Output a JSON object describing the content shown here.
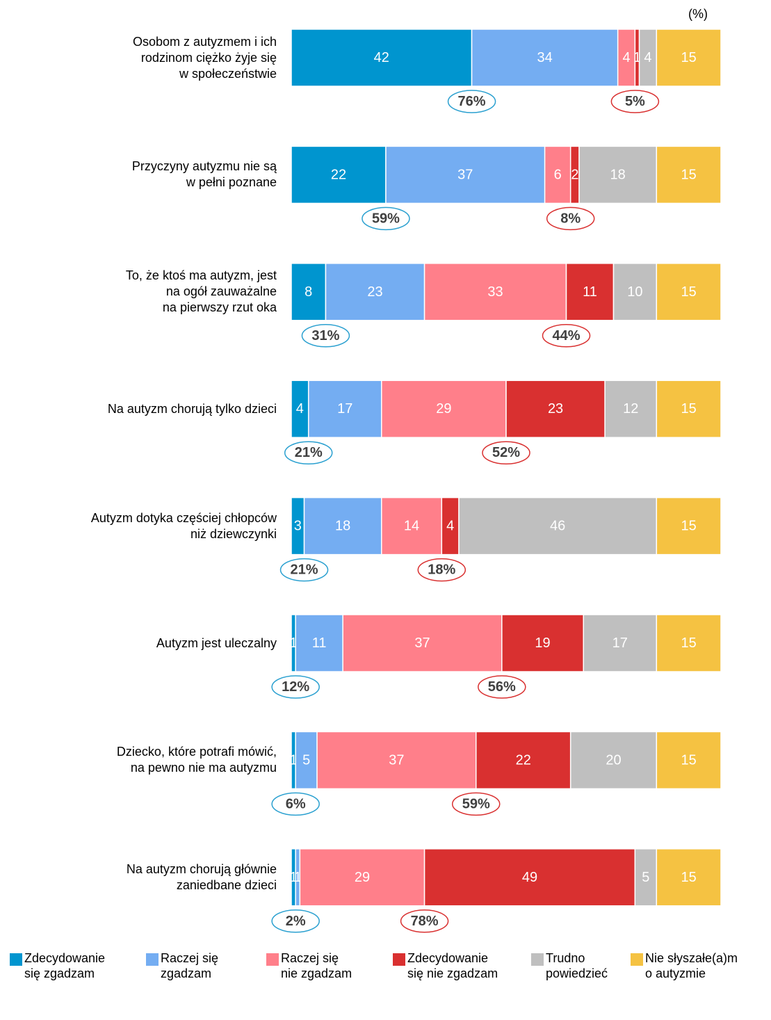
{
  "chart_data": {
    "type": "stacked_bar_horizontal",
    "unit": "(%)",
    "categories": [
      "Osobom z autyzmem i ich\nrodzinom ciężko żyje się\nw społeczeństwie",
      "Przyczyny autyzmu nie są\nw pełni poznane",
      "To, że ktoś ma autyzm, jest\nna ogół zauważalne\nna pierwszy rzut oka",
      "Na autyzm chorują tylko dzieci",
      "Autyzm dotyka częściej chłopców\nniż dziewczynki",
      "Autyzm jest uleczalny",
      "Dziecko, które potrafi mówić,\nna pewno nie ma autyzmu",
      "Na autyzm chorują głównie\nzaniedbane dzieci"
    ],
    "series": [
      {
        "name": "Zdecydowanie\nsię zgadzam",
        "color": "#0095cf",
        "values": [
          42,
          22,
          8,
          4,
          3,
          1,
          1,
          1
        ]
      },
      {
        "name": "Raczej się\nzgadzam",
        "color": "#74adf2",
        "values": [
          34,
          37,
          23,
          17,
          18,
          11,
          5,
          1
        ]
      },
      {
        "name": "Raczej się\nnie zgadzam",
        "color": "#ff7f8a",
        "values": [
          4,
          6,
          33,
          29,
          14,
          37,
          37,
          29
        ]
      },
      {
        "name": "Zdecydowanie\nsię nie zgadzam",
        "color": "#d93030",
        "values": [
          1,
          2,
          11,
          23,
          4,
          19,
          22,
          49
        ]
      },
      {
        "name": "Trudno\npowiedzieć",
        "color": "#bfbfbf",
        "values": [
          4,
          18,
          10,
          12,
          46,
          17,
          20,
          5
        ]
      },
      {
        "name": "Nie słyszałe(a)m\no autyzmie",
        "color": "#f5c242",
        "values": [
          15,
          15,
          15,
          15,
          15,
          15,
          15,
          15
        ]
      }
    ],
    "agree_totals": {
      "color": "#2aa0d0",
      "values": [
        76,
        59,
        31,
        21,
        21,
        12,
        6,
        2
      ],
      "value_labels": [
        "76%",
        "59%",
        "31%",
        "21%",
        "21%",
        "12%",
        "6%",
        "2%"
      ]
    },
    "disagree_totals": {
      "color": "#d93030",
      "values": [
        5,
        8,
        44,
        52,
        18,
        56,
        59,
        78
      ],
      "value_labels": [
        "5%",
        "8%",
        "44%",
        "52%",
        "18%",
        "56%",
        "59%",
        "78%"
      ]
    },
    "xlim": [
      0,
      100
    ]
  }
}
